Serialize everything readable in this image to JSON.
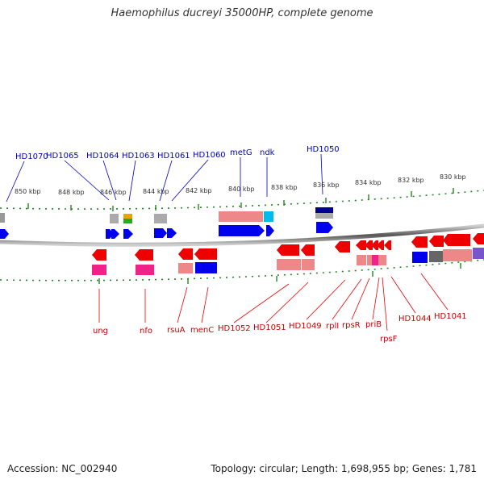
{
  "title": "Haemophilus ducreyi 35000HP, complete genome",
  "footer": {
    "accession": "Accession: NC_002940",
    "topology": "Topology: circular; Length: 1,698,955 bp; Genes: 1,781"
  },
  "ruler_labels": [
    "850 kbp",
    "848 kbp",
    "846 kbp",
    "844 kbp",
    "842 kbp",
    "840 kbp",
    "838 kbp",
    "836 kbp",
    "834 kbp",
    "832 kbp",
    "830 kbp"
  ],
  "top_genes": [
    "HD1070",
    "HD1065",
    "HD1064",
    "HD1063",
    "HD1061",
    "HD1060",
    "metG",
    "ndk",
    "HD1050"
  ],
  "bottom_genes": [
    "ung",
    "nfo",
    "rsuA",
    "menC",
    "HD1052",
    "HD1051",
    "HD1049",
    "rplI",
    "rpsR",
    "priB",
    "rpsF",
    "HD1044",
    "HD1041"
  ],
  "colors": {
    "forward_gene": "#0000ee",
    "reverse_gene": "#ee0000",
    "tick": "#228822",
    "backbone": "#888888"
  }
}
